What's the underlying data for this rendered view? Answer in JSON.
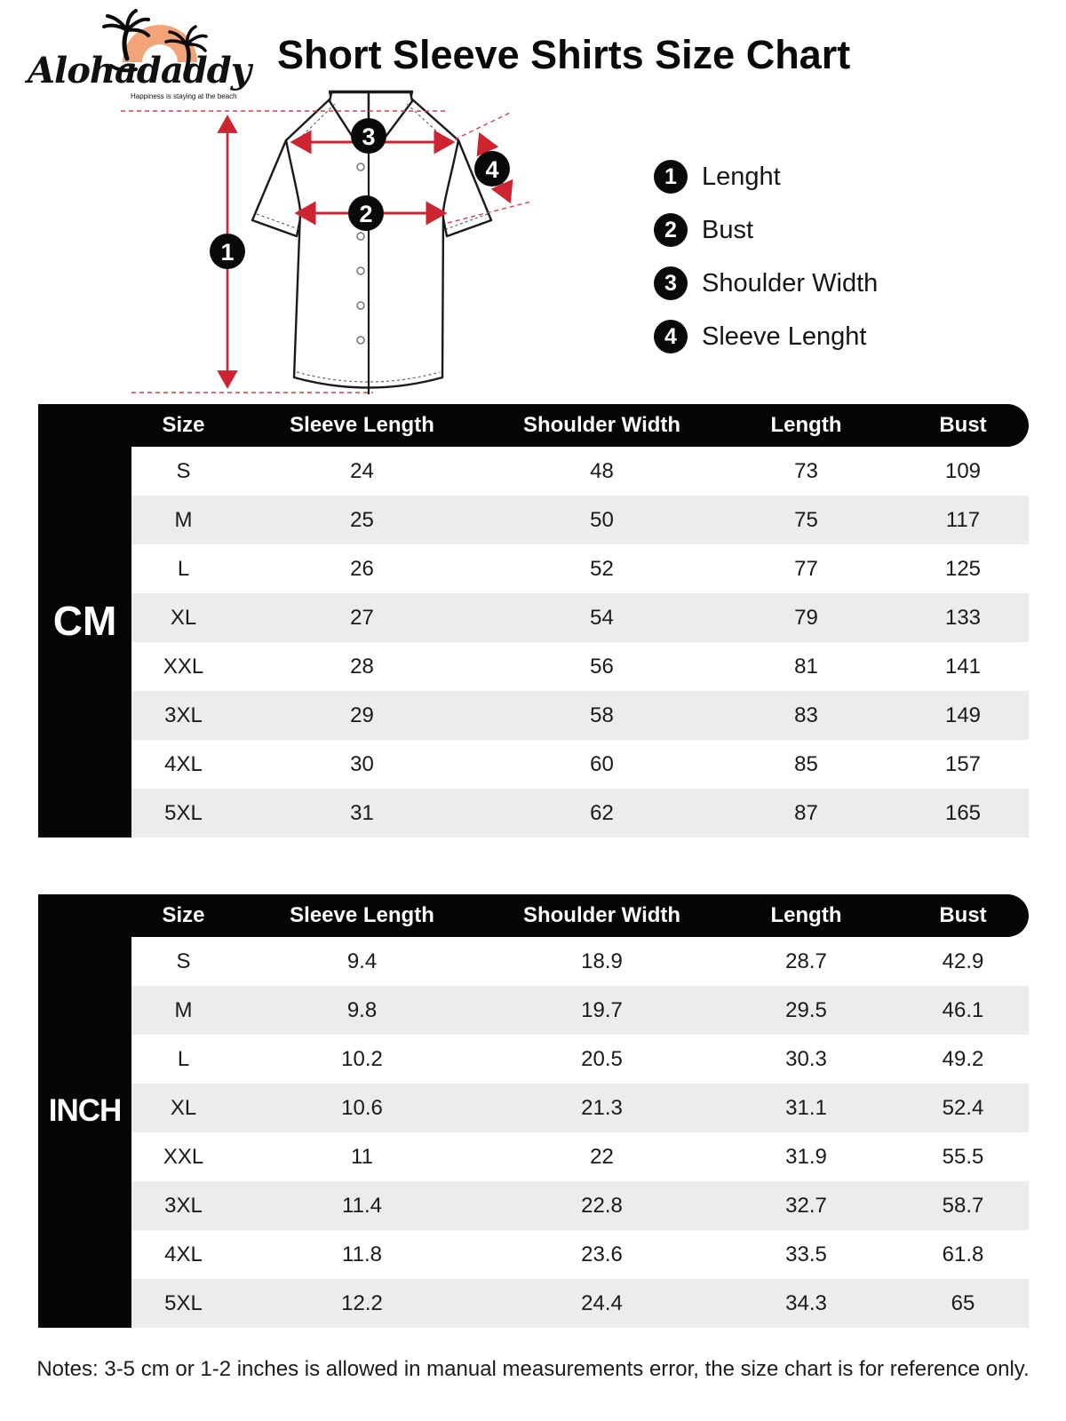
{
  "brand": {
    "name": "Alohadaddy",
    "tagline": "Happiness is staying at the beach",
    "sun_color": "#F2A378"
  },
  "title": "Short Sleeve Shirts Size Chart",
  "legend": {
    "items": [
      {
        "num": "1",
        "label": "Lenght"
      },
      {
        "num": "2",
        "label": "Bust"
      },
      {
        "num": "3",
        "label": "Shoulder Width"
      },
      {
        "num": "4",
        "label": "Sleeve Lenght"
      }
    ]
  },
  "colors": {
    "accent_red": "#CE2330",
    "table_black": "#050505",
    "row_alt_gray": "#ECECEC"
  },
  "cm_table": {
    "unit_label": "CM",
    "columns": [
      "Size",
      "Sleeve Length",
      "Shoulder Width",
      "Length",
      "Bust"
    ],
    "rows": [
      [
        "S",
        "24",
        "48",
        "73",
        "109"
      ],
      [
        "M",
        "25",
        "50",
        "75",
        "117"
      ],
      [
        "L",
        "26",
        "52",
        "77",
        "125"
      ],
      [
        "XL",
        "27",
        "54",
        "79",
        "133"
      ],
      [
        "XXL",
        "28",
        "56",
        "81",
        "141"
      ],
      [
        "3XL",
        "29",
        "58",
        "83",
        "149"
      ],
      [
        "4XL",
        "30",
        "60",
        "85",
        "157"
      ],
      [
        "5XL",
        "31",
        "62",
        "87",
        "165"
      ]
    ]
  },
  "inch_table": {
    "unit_label": "INCH",
    "columns": [
      "Size",
      "Sleeve Length",
      "Shoulder Width",
      "Length",
      "Bust"
    ],
    "rows": [
      [
        "S",
        "9.4",
        "18.9",
        "28.7",
        "42.9"
      ],
      [
        "M",
        "9.8",
        "19.7",
        "29.5",
        "46.1"
      ],
      [
        "L",
        "10.2",
        "20.5",
        "30.3",
        "49.2"
      ],
      [
        "XL",
        "10.6",
        "21.3",
        "31.1",
        "52.4"
      ],
      [
        "XXL",
        "11",
        "22",
        "31.9",
        "55.5"
      ],
      [
        "3XL",
        "11.4",
        "22.8",
        "32.7",
        "58.7"
      ],
      [
        "4XL",
        "11.8",
        "23.6",
        "33.5",
        "61.8"
      ],
      [
        "5XL",
        "12.2",
        "24.4",
        "34.3",
        "65"
      ]
    ]
  },
  "notes": "Notes: 3-5 cm or 1-2 inches is allowed in manual measurements error, the size chart is for reference only."
}
